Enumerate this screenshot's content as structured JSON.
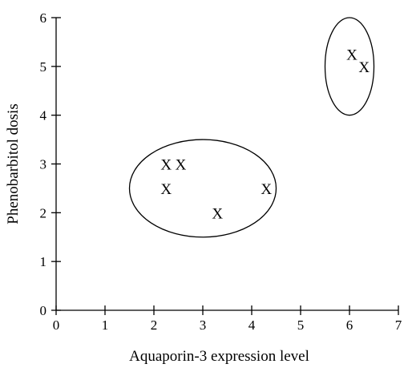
{
  "chart_data": {
    "type": "scatter",
    "xlabel": "Aquaporin-3 expression level",
    "ylabel": "Phenobarbitol dosis",
    "xlim": [
      0,
      7
    ],
    "ylim": [
      0,
      6
    ],
    "x_ticks": [
      0,
      1,
      2,
      3,
      4,
      5,
      6,
      7
    ],
    "y_ticks": [
      0,
      1,
      2,
      3,
      4,
      5,
      6
    ],
    "marker": "X",
    "grid": false,
    "points": [
      {
        "x": 2.25,
        "y": 3.0
      },
      {
        "x": 2.55,
        "y": 3.0
      },
      {
        "x": 2.25,
        "y": 2.5
      },
      {
        "x": 3.3,
        "y": 2.0
      },
      {
        "x": 4.3,
        "y": 2.5
      },
      {
        "x": 6.05,
        "y": 5.25
      },
      {
        "x": 6.3,
        "y": 5.0
      }
    ],
    "clusters": [
      {
        "center": [
          3.0,
          2.5
        ],
        "radius": [
          1.5,
          1.0
        ]
      },
      {
        "center": [
          6.0,
          5.0
        ],
        "radius": [
          0.5,
          1.0
        ]
      }
    ]
  }
}
